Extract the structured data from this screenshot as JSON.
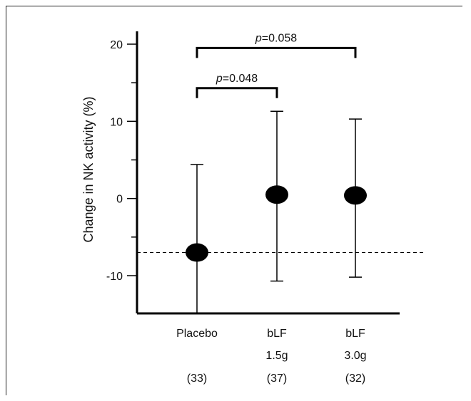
{
  "chart_data": {
    "type": "scatter",
    "ylabel": "Change in NK activity (%)",
    "ylim": [
      -15,
      20
    ],
    "y_ticks": [
      20,
      10,
      0,
      -10
    ],
    "y_tick_labels": [
      "20",
      "10",
      "0",
      "-10"
    ],
    "grid": false,
    "categories": [
      "Placebo",
      "bLF",
      "bLF"
    ],
    "category_sublabels": [
      "",
      "1.5g",
      "3.0g"
    ],
    "category_n": [
      "(33)",
      "(37)",
      "(32)"
    ],
    "points": [
      {
        "category": "Placebo",
        "mean": -7.0,
        "upper": 4.4,
        "lower": -15.0
      },
      {
        "category": "bLF 1.5g",
        "mean": 0.5,
        "upper": 11.3,
        "lower": -10.7
      },
      {
        "category": "bLF 3.0g",
        "mean": 0.4,
        "upper": 10.3,
        "lower": -10.2
      }
    ],
    "reference_line": -7.0,
    "significance": [
      {
        "from": 0,
        "to": 1,
        "y": 14.3,
        "p_label": "p",
        "p_value": "=0.048"
      },
      {
        "from": 0,
        "to": 2,
        "y": 19.5,
        "p_label": "p",
        "p_value": "=0.058"
      }
    ]
  }
}
